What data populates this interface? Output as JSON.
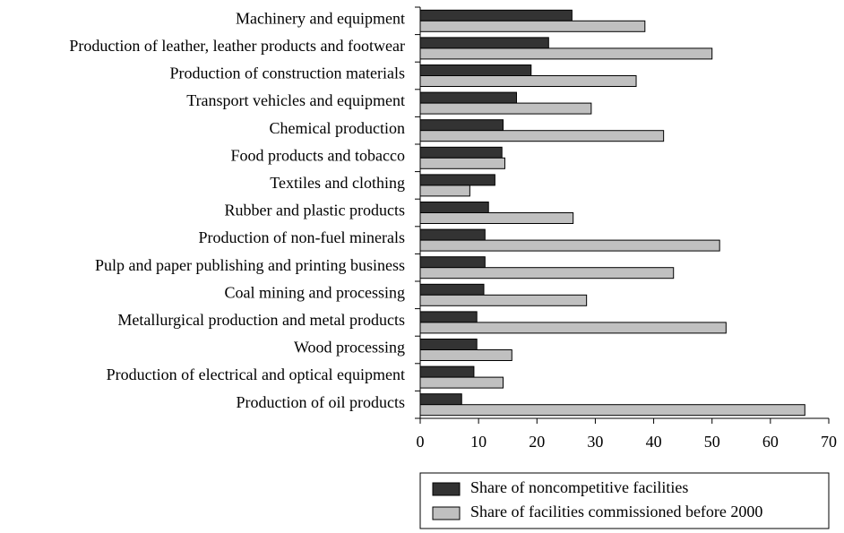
{
  "chart_data": {
    "type": "bar",
    "orientation": "horizontal",
    "categories": [
      "Machinery and equipment",
      "Production of leather, leather products and footwear",
      "Production of construction materials",
      "Transport vehicles and equipment",
      "Chemical production",
      "Food products and tobacco",
      "Textiles and clothing",
      "Rubber and plastic products",
      "Production of non-fuel minerals",
      "Pulp and paper publishing and printing business",
      "Coal mining and processing",
      "Metallurgical production and metal products",
      "Wood processing",
      "Production of electrical and optical equipment",
      "Production of oil products"
    ],
    "series": [
      {
        "name": "Share of noncompetitive facilities",
        "color": "#333333",
        "values": [
          26,
          22,
          19,
          16.5,
          14.2,
          14,
          12.8,
          11.7,
          11.1,
          11.1,
          10.9,
          9.7,
          9.7,
          9.2,
          7.1
        ]
      },
      {
        "name": "Share of facilities commissioned before 2000",
        "color": "#c0c0c0",
        "values": [
          38.5,
          50,
          37,
          29.3,
          41.7,
          14.5,
          8.5,
          26.2,
          51.3,
          43.4,
          28.5,
          52.4,
          15.7,
          14.2,
          65.9
        ]
      }
    ],
    "xlim": [
      0,
      70
    ],
    "xticks": [
      0,
      10,
      20,
      30,
      40,
      50,
      60,
      70
    ],
    "legend": "bottom-right"
  }
}
